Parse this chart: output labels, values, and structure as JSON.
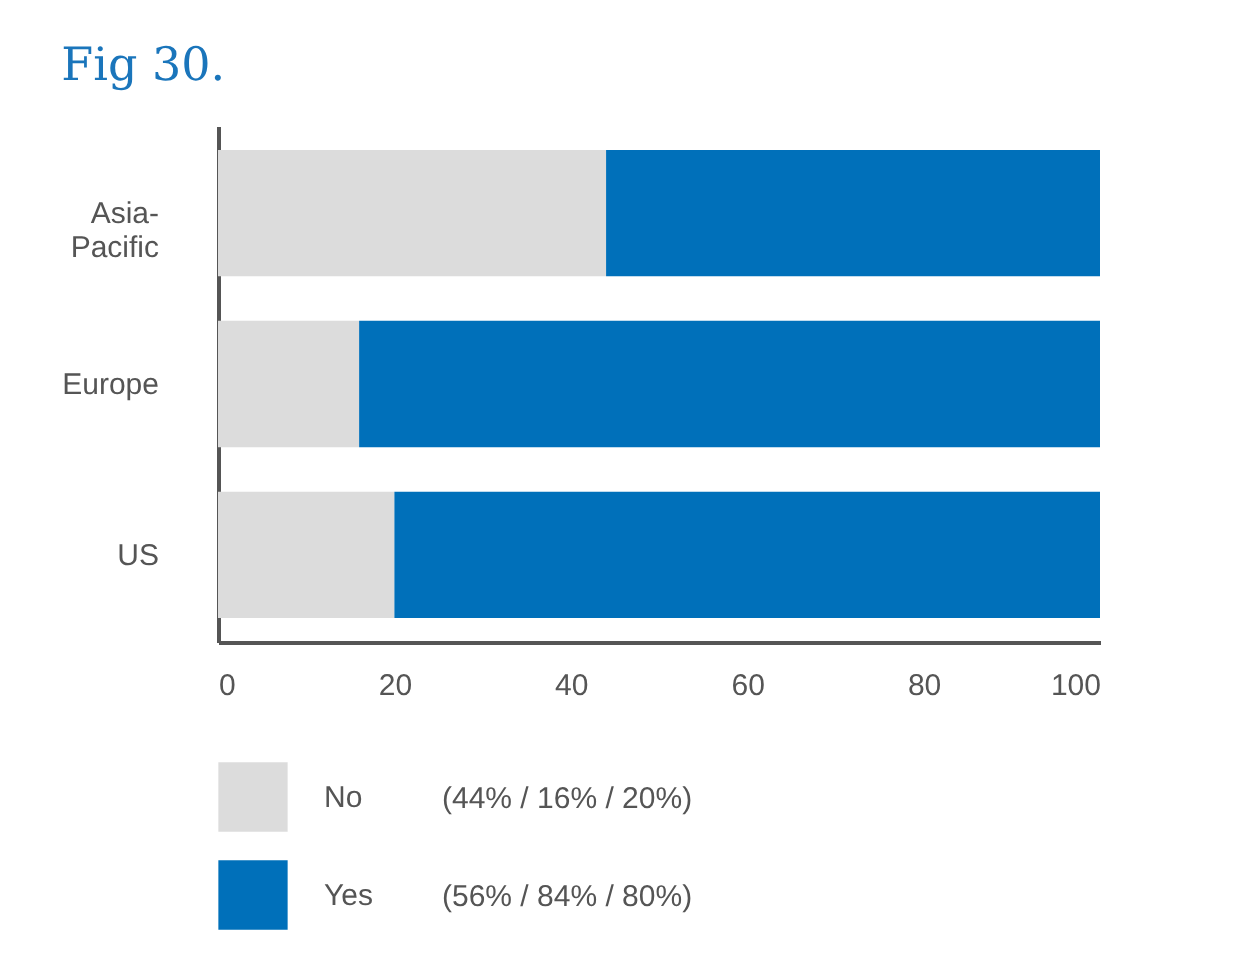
{
  "chart_data": {
    "type": "bar",
    "title": "Fig 30.",
    "orientation": "horizontal",
    "stacked": true,
    "categories": [
      "Asia-Pacific",
      "Europe",
      "US"
    ],
    "series": [
      {
        "name": "No",
        "color": "#dcdcdc",
        "values": [
          44,
          16,
          20
        ]
      },
      {
        "name": "Yes",
        "color": "#0070ba",
        "values": [
          56,
          84,
          80
        ]
      }
    ],
    "annotations": [
      "(44% / 16% / 20%)",
      "(56% / 84% / 80%)"
    ],
    "xlim": [
      0,
      100
    ],
    "xticks": [
      0,
      20,
      40,
      60,
      80,
      100
    ],
    "grid": false,
    "legend": "bottom"
  }
}
